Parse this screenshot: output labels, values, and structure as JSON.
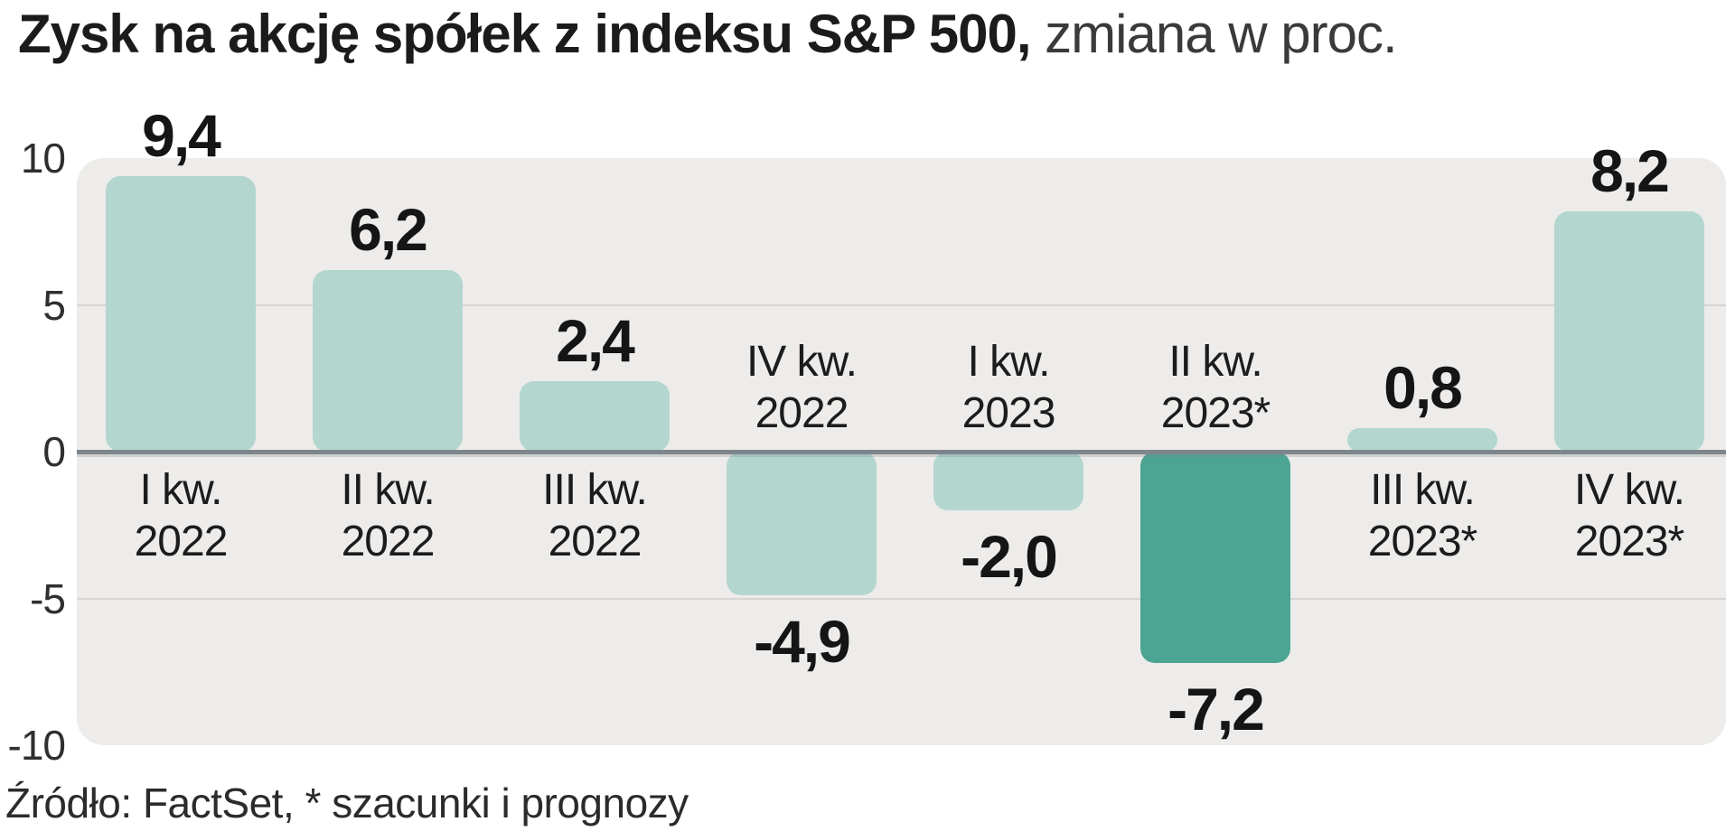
{
  "title": {
    "bold": "Zysk na akcję spółek z indeksu S&P 500,",
    "regular": " zmiana w proc."
  },
  "source": "Źródło: FactSet, * szacunki i prognozy",
  "chart_data": {
    "type": "bar",
    "title": "Zysk na akcję spółek z indeksu S&P 500, zmiana w proc.",
    "xlabel": "",
    "ylabel": "zmiana w proc.",
    "categories": [
      "I kw. 2022",
      "II kw. 2022",
      "III kw. 2022",
      "IV kw. 2022",
      "I kw. 2023",
      "II kw. 2023*",
      "III kw. 2023*",
      "IV kw. 2023*"
    ],
    "values": [
      9.4,
      6.2,
      2.4,
      -4.9,
      -2.0,
      -7.2,
      0.8,
      8.2
    ],
    "value_labels": [
      "9,4",
      "6,2",
      "2,4",
      "-4,9",
      "-2,0",
      "-7,2",
      "0,8",
      "8,2"
    ],
    "ylim": [
      -10,
      10
    ],
    "yticks": [
      10,
      5,
      0,
      -5,
      -10
    ],
    "ytick_labels": [
      "10",
      "5",
      "0",
      "-5",
      "-10"
    ],
    "grid": "on",
    "legend": "none",
    "highlight_index": 5,
    "colors": {
      "bar": "#b3d6ce",
      "bar_highlight": "#4ca493",
      "plot_bg": "#edecea",
      "zero_line": "#7e868d",
      "grid_line": "#d6d5d3",
      "text": "#1c1c1c"
    }
  }
}
